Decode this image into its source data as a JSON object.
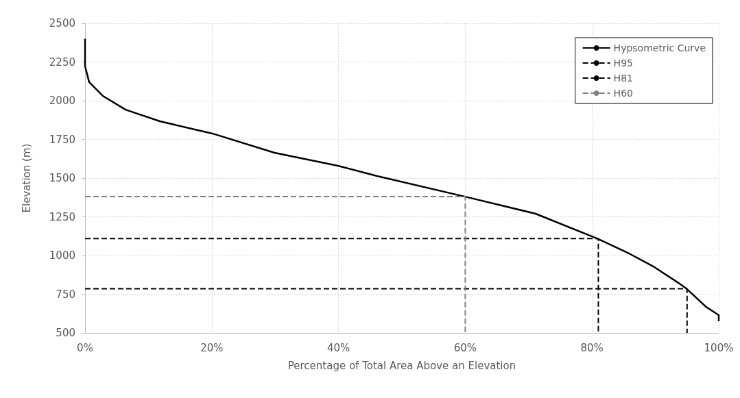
{
  "chart_data": {
    "type": "line",
    "xlabel": "Percentage of Total Area Above an Elevation",
    "ylabel": "Elevation (m)",
    "xlim": [
      0,
      100
    ],
    "xticks": [
      {
        "value": 0,
        "label": "0%"
      },
      {
        "value": 20,
        "label": "20%"
      },
      {
        "value": 40,
        "label": "40%"
      },
      {
        "value": 60,
        "label": "60%"
      },
      {
        "value": 80,
        "label": "80%"
      },
      {
        "value": 100,
        "label": "100%"
      }
    ],
    "ylim": [
      500,
      2500
    ],
    "yticks": [
      500,
      750,
      1000,
      1250,
      1500,
      1750,
      2000,
      2250,
      2500
    ],
    "grid": true,
    "legend": "top right",
    "marker": "none",
    "series": [
      {
        "name": "Hypsometric Curve",
        "color": "#000000",
        "line_style": "solid",
        "x": [
          0,
          0,
          0.65,
          2.8,
          6.4,
          11.8,
          20.1,
          29.9,
          39.9,
          46.1,
          60,
          71.1,
          80.8,
          86,
          89.8,
          93.5,
          95,
          98,
          100,
          100
        ],
        "values": [
          2400,
          2223,
          2120,
          2031,
          1942,
          1867,
          1788,
          1664,
          1580,
          1513,
          1380,
          1270,
          1110,
          1010,
          926,
          827,
          783,
          668,
          615,
          575
        ]
      },
      {
        "name": "H95",
        "color": "#000000",
        "line_style": "dashed",
        "x": [
          0,
          95,
          95
        ],
        "values": [
          785,
          785,
          500
        ]
      },
      {
        "name": "H81",
        "color": "#000000",
        "line_style": "dashed",
        "x": [
          0,
          81,
          81
        ],
        "values": [
          1110,
          1110,
          500
        ]
      },
      {
        "name": "H60",
        "color": "#808080",
        "line_style": "dashed",
        "x": [
          0,
          60,
          60
        ],
        "values": [
          1380,
          1380,
          500
        ]
      }
    ]
  }
}
